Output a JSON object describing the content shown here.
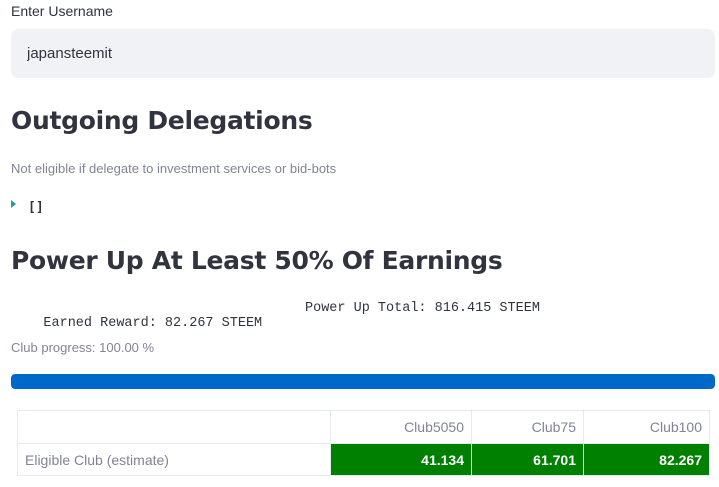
{
  "username_field": {
    "label": "Enter Username",
    "value": "japansteemit"
  },
  "delegations": {
    "heading": "Outgoing Delegations",
    "caption": "Not eligible if delegate to investment services or bid-bots",
    "json_value": "[]"
  },
  "power_up": {
    "heading": "Power Up At Least 50% Of Earnings",
    "earned_reward": "Earned Reward: 82.267 STEEM",
    "power_up_total": "Power Up Total: 816.415 STEEM",
    "progress_caption": "Club progress: 100.00 %",
    "progress_fraction": 1.0,
    "progress_color": "#0068c9"
  },
  "club_table": {
    "columns": [
      "Club5050",
      "Club75",
      "Club100"
    ],
    "rows": [
      {
        "label": "Eligible Club (estimate)",
        "values": [
          "41.134",
          "61.701",
          "82.267"
        ]
      }
    ],
    "highlight_color": "#008000"
  }
}
